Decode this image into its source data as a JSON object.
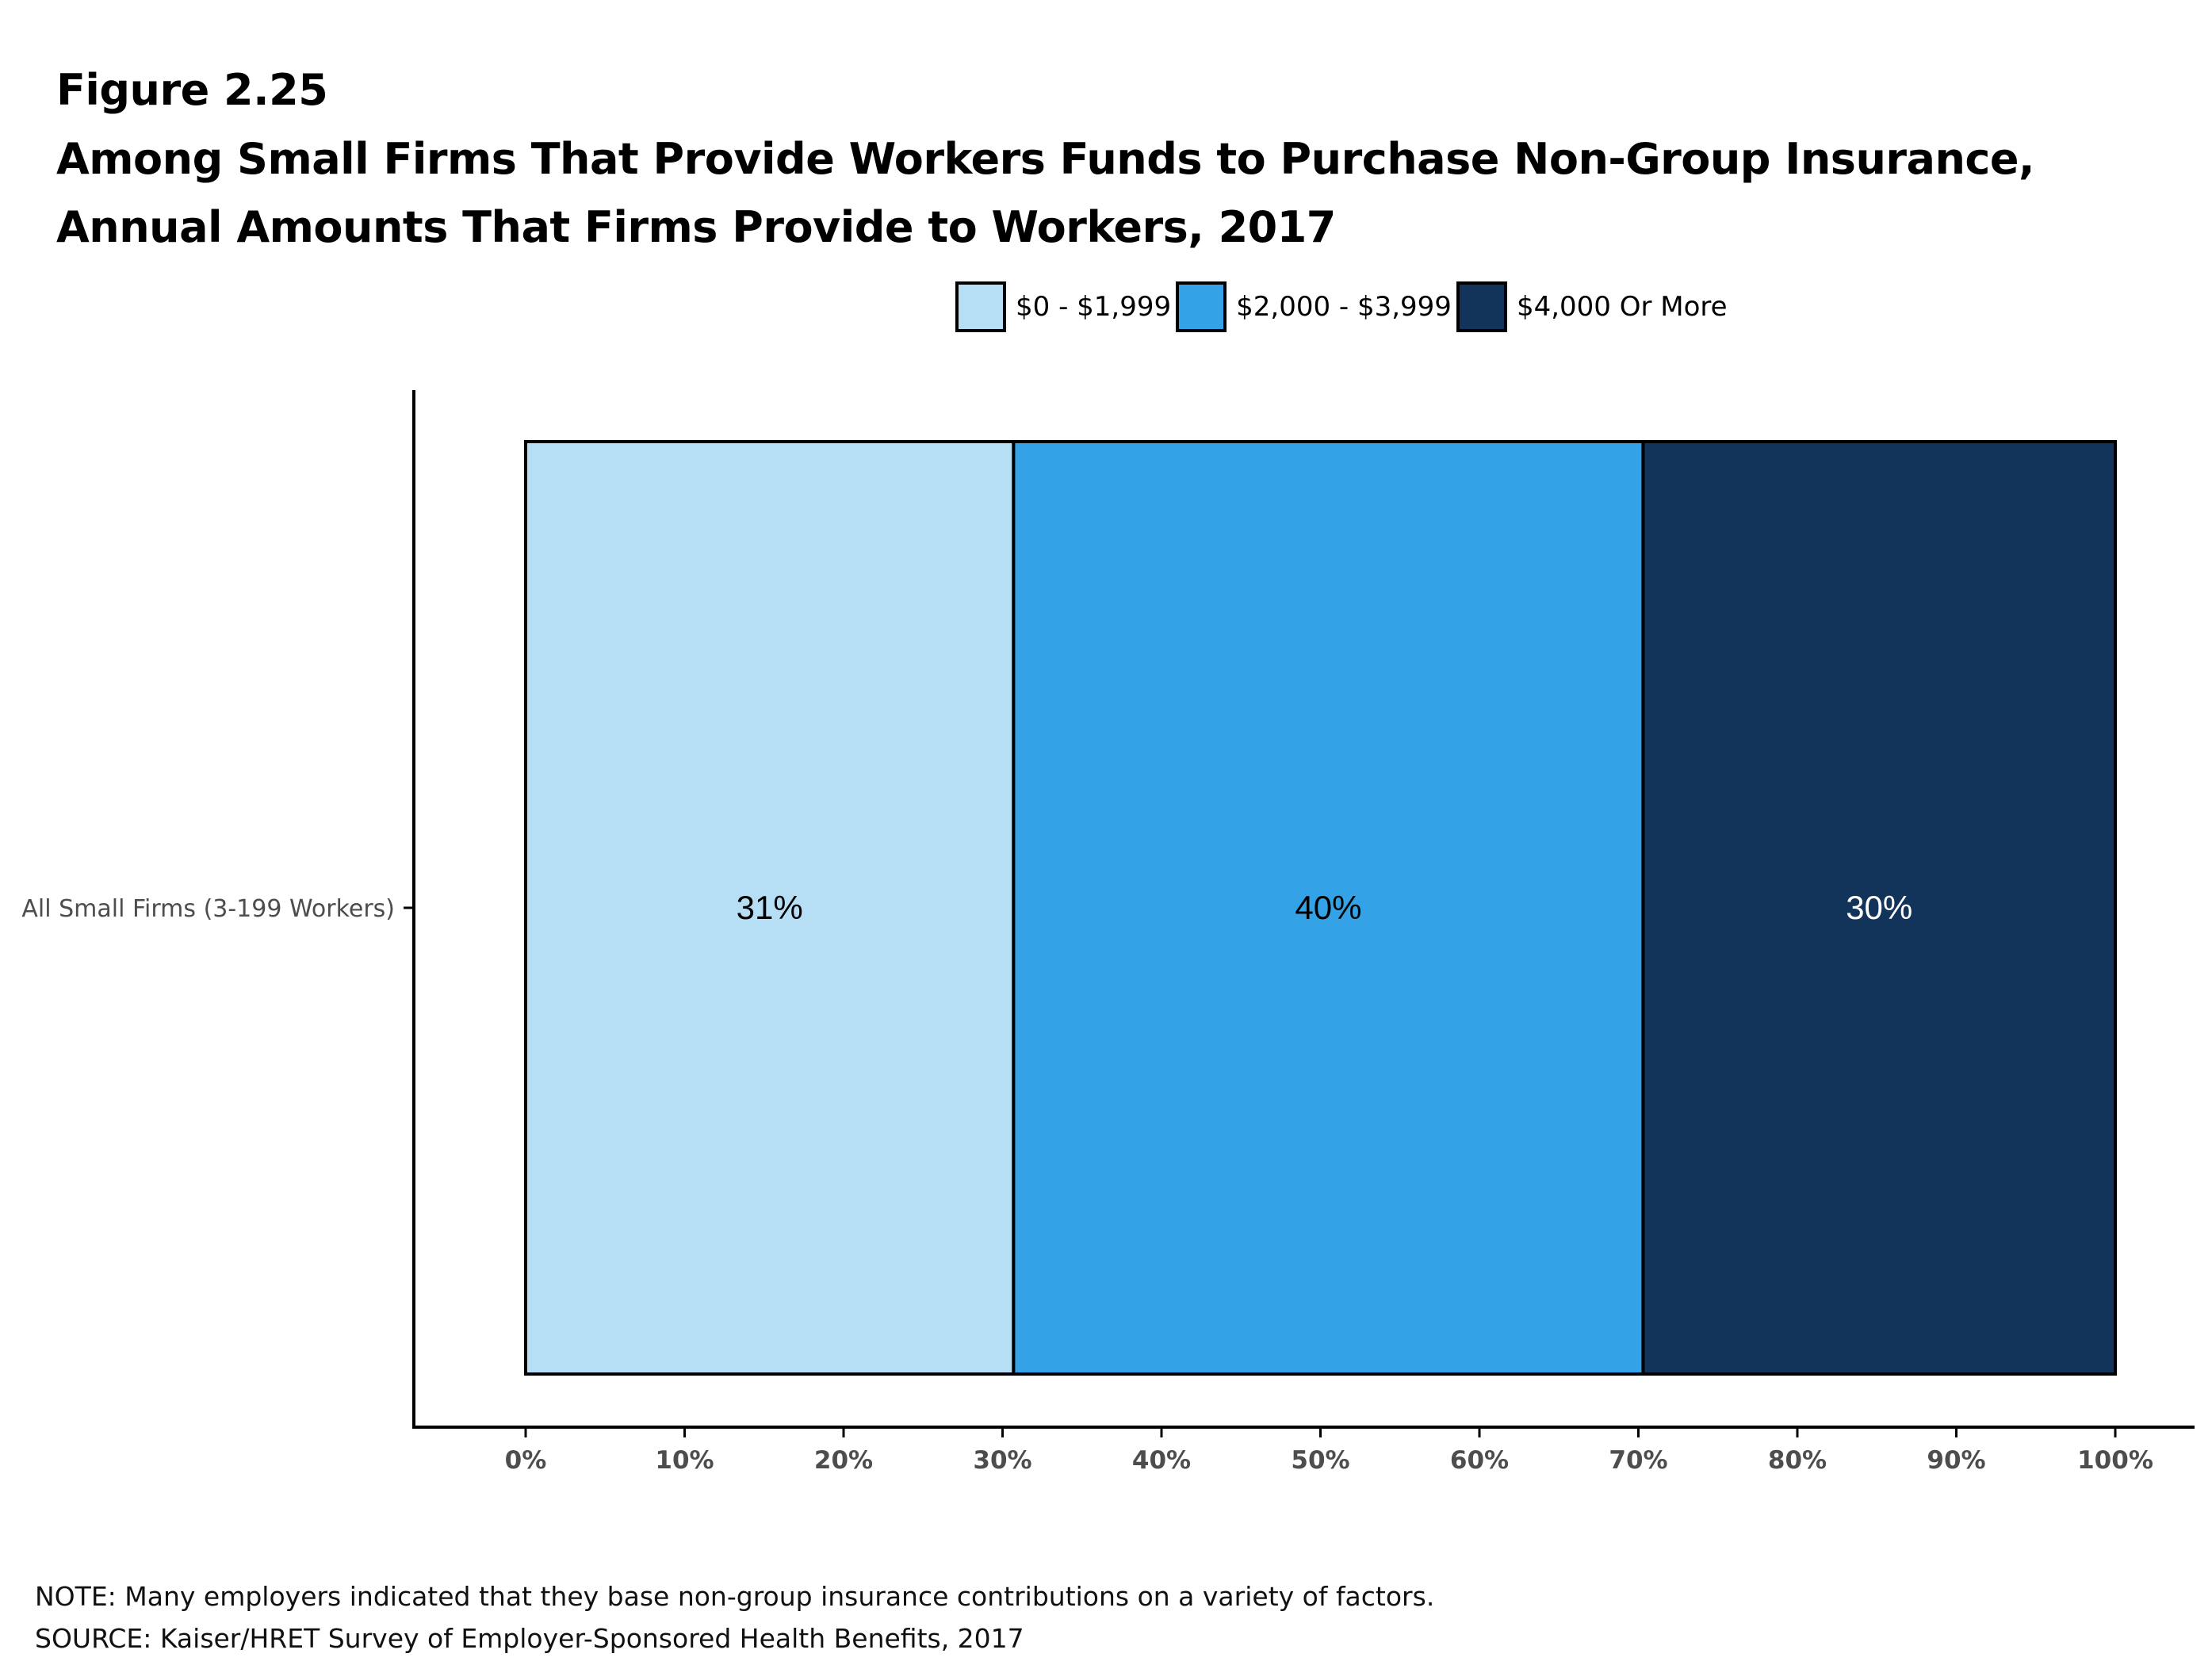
{
  "figure_label": "Figure 2.25",
  "title": "Among Small Firms That Provide Workers Funds to Purchase Non-Group Insurance, Annual Amounts That Firms Provide to Workers, 2017",
  "note": "NOTE: Many employers indicated that they base non-group insurance contributions on a variety of factors.",
  "source": "SOURCE: Kaiser/HRET Survey of Employer-Sponsored Health Benefits, 2017",
  "chart_data": {
    "type": "bar",
    "orientation": "horizontal",
    "stacked": true,
    "categories": [
      "All Small Firms (3-199 Workers)"
    ],
    "series": [
      {
        "name": "$0 - $1,999",
        "values": [
          31
        ],
        "label": "31%",
        "color": "#b6dff6",
        "label_color": "#000000"
      },
      {
        "name": "$2,000 - $3,999",
        "values": [
          40
        ],
        "label": "40%",
        "color": "#33a2e6",
        "label_color": "#000000"
      },
      {
        "name": "$4,000 Or More",
        "values": [
          30
        ],
        "label": "30%",
        "color": "#13345a",
        "label_color": "#ffffff"
      }
    ],
    "xlim": [
      0,
      100
    ],
    "x_ticks": [
      "0%",
      "10%",
      "20%",
      "30%",
      "40%",
      "50%",
      "60%",
      "70%",
      "80%",
      "90%",
      "100%"
    ],
    "legend_position": "top",
    "grid": false,
    "xlabel": "",
    "ylabel": ""
  }
}
